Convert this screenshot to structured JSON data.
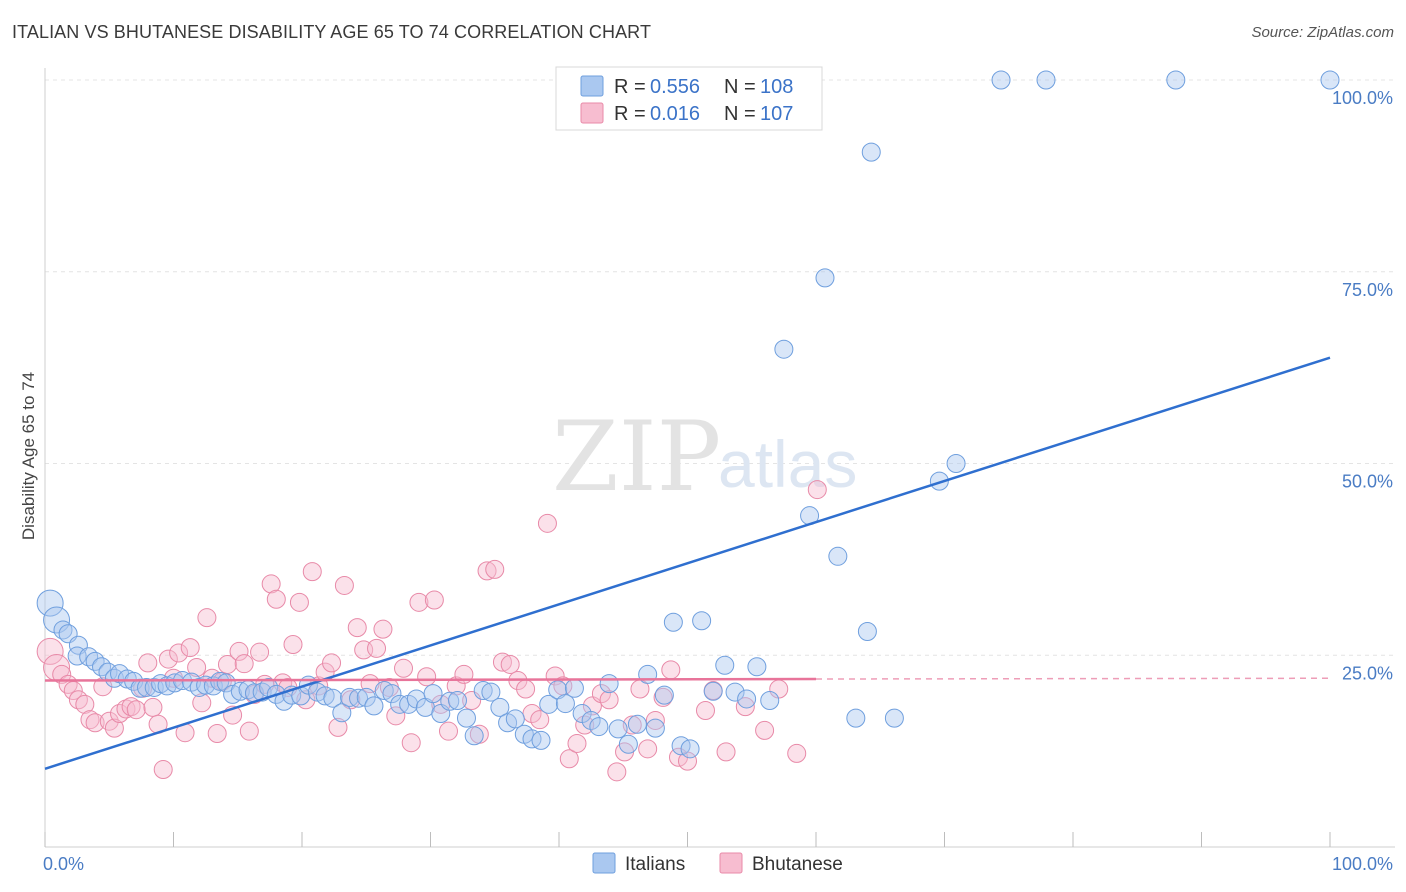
{
  "header": {
    "title": "ITALIAN VS BHUTANESE DISABILITY AGE 65 TO 74 CORRELATION CHART",
    "source": "Source: ZipAtlas.com"
  },
  "watermark": {
    "zip": "ZIP",
    "atlas": "atlas"
  },
  "legend": {
    "r_label": "R =",
    "n_label": "N =",
    "rows": [
      {
        "r": "0.556",
        "n": "108",
        "fill": "#aac8f0",
        "stroke": "#6f9fde"
      },
      {
        "r": "0.016",
        "n": "107",
        "fill": "#f7bdd0",
        "stroke": "#e88aa8"
      }
    ]
  },
  "bottom_legend": [
    {
      "label": "Italians"
    },
    {
      "label": "Bhutanese"
    }
  ],
  "chart_data": {
    "type": "scatter",
    "title": "ITALIAN VS BHUTANESE DISABILITY AGE 65 TO 74 CORRELATION CHART",
    "xlabel": "",
    "ylabel": "Disability Age 65 to 74",
    "xlim": [
      0,
      100
    ],
    "ylim": [
      0,
      100
    ],
    "x_tick_labels": [
      "0.0%",
      "100.0%"
    ],
    "y_tick_values": [
      25,
      50,
      75,
      100
    ],
    "y_tick_labels": [
      "25.0%",
      "50.0%",
      "75.0%",
      "100.0%"
    ],
    "grid": true,
    "legend_position": "top-center",
    "colors": {
      "italians": "#6f9fde",
      "bhutanese": "#e88aa8",
      "italians_line": "#2f6fcf",
      "bhutanese_line": "#e8749a"
    },
    "series": [
      {
        "name": "Italians",
        "r": 0.556,
        "n": 108,
        "trend": {
          "x": [
            0,
            100
          ],
          "y": [
            10.2,
            63.8
          ]
        },
        "points": [
          [
            0.4,
            31.8
          ],
          [
            0.9,
            29.6
          ],
          [
            1.4,
            28.3
          ],
          [
            1.8,
            27.8
          ],
          [
            2.6,
            26.3
          ],
          [
            2.5,
            24.9
          ],
          [
            3.4,
            24.8
          ],
          [
            3.9,
            24.2
          ],
          [
            4.4,
            23.5
          ],
          [
            4.9,
            22.8
          ],
          [
            5.4,
            22.0
          ],
          [
            5.8,
            22.6
          ],
          [
            6.4,
            21.9
          ],
          [
            6.9,
            21.6
          ],
          [
            7.4,
            20.7
          ],
          [
            7.9,
            20.8
          ],
          [
            8.5,
            20.8
          ],
          [
            9.0,
            21.3
          ],
          [
            9.5,
            21.0
          ],
          [
            10.1,
            21.4
          ],
          [
            10.7,
            21.7
          ],
          [
            11.4,
            21.5
          ],
          [
            12.0,
            20.8
          ],
          [
            12.5,
            21.1
          ],
          [
            13.1,
            21.0
          ],
          [
            13.6,
            21.6
          ],
          [
            14.1,
            21.4
          ],
          [
            14.6,
            19.9
          ],
          [
            15.2,
            20.3
          ],
          [
            15.8,
            20.5
          ],
          [
            16.3,
            20.1
          ],
          [
            16.9,
            20.2
          ],
          [
            17.4,
            20.8
          ],
          [
            18.0,
            19.9
          ],
          [
            18.6,
            19.0
          ],
          [
            19.2,
            19.8
          ],
          [
            19.9,
            19.7
          ],
          [
            20.5,
            21.1
          ],
          [
            21.2,
            20.2
          ],
          [
            21.8,
            19.7
          ],
          [
            22.4,
            19.4
          ],
          [
            23.1,
            17.5
          ],
          [
            23.7,
            19.5
          ],
          [
            24.4,
            19.4
          ],
          [
            25.0,
            19.5
          ],
          [
            25.6,
            18.4
          ],
          [
            26.4,
            20.4
          ],
          [
            27.0,
            20.0
          ],
          [
            27.6,
            18.6
          ],
          [
            28.3,
            18.6
          ],
          [
            28.9,
            19.3
          ],
          [
            29.6,
            18.2
          ],
          [
            30.2,
            20.0
          ],
          [
            30.8,
            17.4
          ],
          [
            31.5,
            19.0
          ],
          [
            32.1,
            19.1
          ],
          [
            32.8,
            16.8
          ],
          [
            33.4,
            14.5
          ],
          [
            34.1,
            20.4
          ],
          [
            34.7,
            20.2
          ],
          [
            35.4,
            18.2
          ],
          [
            36.0,
            16.2
          ],
          [
            36.6,
            16.7
          ],
          [
            37.3,
            14.7
          ],
          [
            37.9,
            14.1
          ],
          [
            38.6,
            13.9
          ],
          [
            39.2,
            18.6
          ],
          [
            39.9,
            20.5
          ],
          [
            40.5,
            18.7
          ],
          [
            41.2,
            20.7
          ],
          [
            41.8,
            17.4
          ],
          [
            42.5,
            16.5
          ],
          [
            43.1,
            15.7
          ],
          [
            43.9,
            21.3
          ],
          [
            44.6,
            15.4
          ],
          [
            45.4,
            13.4
          ],
          [
            46.1,
            16.0
          ],
          [
            46.9,
            22.5
          ],
          [
            47.5,
            15.5
          ],
          [
            48.2,
            19.8
          ],
          [
            48.9,
            29.3
          ],
          [
            49.5,
            13.2
          ],
          [
            50.2,
            12.8
          ],
          [
            51.1,
            29.5
          ],
          [
            52.0,
            20.3
          ],
          [
            52.9,
            23.7
          ],
          [
            53.7,
            20.2
          ],
          [
            54.6,
            19.3
          ],
          [
            55.4,
            23.5
          ],
          [
            56.4,
            19.1
          ],
          [
            57.5,
            64.9
          ],
          [
            59.5,
            43.2
          ],
          [
            60.7,
            74.2
          ],
          [
            61.7,
            37.9
          ],
          [
            63.1,
            16.8
          ],
          [
            64.0,
            28.1
          ],
          [
            64.3,
            90.6
          ],
          [
            66.1,
            16.8
          ],
          [
            69.6,
            47.7
          ],
          [
            70.9,
            50.0
          ],
          [
            74.4,
            100.0
          ],
          [
            77.9,
            100.0
          ],
          [
            88.0,
            100.0
          ],
          [
            100.0,
            100.0
          ]
        ]
      },
      {
        "name": "Bhutanese",
        "r": 0.016,
        "n": 107,
        "trend": {
          "x": [
            0,
            60
          ],
          "y": [
            21.7,
            21.9
          ],
          "dashed_extension": {
            "x": [
              60,
              100
            ],
            "y": [
              21.9,
              22.0
            ]
          }
        },
        "points": [
          [
            0.4,
            25.5
          ],
          [
            0.9,
            23.4
          ],
          [
            1.3,
            22.5
          ],
          [
            1.8,
            21.2
          ],
          [
            2.2,
            20.4
          ],
          [
            2.6,
            19.2
          ],
          [
            3.1,
            18.6
          ],
          [
            3.5,
            16.6
          ],
          [
            3.9,
            16.2
          ],
          [
            4.5,
            20.9
          ],
          [
            5.0,
            16.4
          ],
          [
            5.4,
            15.5
          ],
          [
            5.8,
            17.4
          ],
          [
            6.3,
            18.0
          ],
          [
            6.7,
            18.3
          ],
          [
            7.1,
            17.9
          ],
          [
            7.6,
            20.7
          ],
          [
            8.0,
            24.0
          ],
          [
            8.4,
            18.2
          ],
          [
            8.8,
            16.0
          ],
          [
            9.2,
            10.1
          ],
          [
            9.6,
            24.5
          ],
          [
            10.0,
            22.0
          ],
          [
            10.4,
            25.3
          ],
          [
            10.9,
            14.9
          ],
          [
            11.3,
            26.0
          ],
          [
            11.8,
            23.4
          ],
          [
            12.2,
            18.8
          ],
          [
            12.6,
            29.9
          ],
          [
            13.0,
            22.0
          ],
          [
            13.4,
            14.8
          ],
          [
            13.8,
            21.6
          ],
          [
            14.2,
            23.8
          ],
          [
            14.6,
            17.2
          ],
          [
            15.1,
            25.5
          ],
          [
            15.5,
            23.9
          ],
          [
            15.9,
            15.1
          ],
          [
            16.3,
            19.9
          ],
          [
            16.7,
            25.4
          ],
          [
            17.1,
            21.2
          ],
          [
            17.6,
            34.3
          ],
          [
            18.0,
            32.3
          ],
          [
            18.5,
            21.4
          ],
          [
            18.9,
            20.8
          ],
          [
            19.3,
            26.4
          ],
          [
            19.8,
            31.9
          ],
          [
            20.3,
            19.2
          ],
          [
            20.8,
            35.9
          ],
          [
            21.3,
            21.0
          ],
          [
            21.8,
            22.8
          ],
          [
            22.3,
            24.0
          ],
          [
            22.8,
            15.6
          ],
          [
            23.3,
            34.1
          ],
          [
            23.8,
            19.2
          ],
          [
            24.3,
            28.6
          ],
          [
            24.8,
            25.7
          ],
          [
            25.3,
            21.3
          ],
          [
            25.8,
            25.9
          ],
          [
            26.3,
            28.4
          ],
          [
            26.8,
            20.8
          ],
          [
            27.3,
            17.1
          ],
          [
            27.9,
            23.3
          ],
          [
            28.5,
            13.6
          ],
          [
            29.1,
            31.9
          ],
          [
            29.7,
            22.2
          ],
          [
            30.3,
            32.2
          ],
          [
            30.8,
            18.6
          ],
          [
            31.4,
            15.1
          ],
          [
            32.0,
            21.0
          ],
          [
            32.6,
            22.5
          ],
          [
            33.2,
            19.1
          ],
          [
            33.8,
            14.7
          ],
          [
            34.4,
            36.0
          ],
          [
            35.0,
            36.2
          ],
          [
            35.6,
            24.1
          ],
          [
            36.2,
            23.8
          ],
          [
            36.8,
            21.7
          ],
          [
            37.4,
            20.6
          ],
          [
            37.9,
            17.4
          ],
          [
            38.5,
            16.6
          ],
          [
            39.1,
            42.2
          ],
          [
            39.7,
            22.3
          ],
          [
            40.3,
            21.0
          ],
          [
            40.8,
            11.5
          ],
          [
            41.4,
            13.5
          ],
          [
            42.0,
            15.9
          ],
          [
            42.6,
            18.4
          ],
          [
            43.3,
            20.0
          ],
          [
            43.9,
            19.2
          ],
          [
            44.5,
            9.8
          ],
          [
            45.1,
            12.4
          ],
          [
            45.7,
            15.9
          ],
          [
            46.3,
            20.6
          ],
          [
            46.9,
            12.8
          ],
          [
            47.5,
            16.5
          ],
          [
            48.1,
            19.5
          ],
          [
            48.7,
            23.1
          ],
          [
            49.3,
            11.7
          ],
          [
            50.0,
            11.2
          ],
          [
            51.4,
            17.8
          ],
          [
            52.0,
            20.4
          ],
          [
            53.0,
            12.4
          ],
          [
            54.5,
            18.3
          ],
          [
            56.0,
            15.2
          ],
          [
            57.1,
            20.6
          ],
          [
            58.5,
            12.2
          ],
          [
            60.1,
            46.6
          ]
        ]
      }
    ]
  }
}
